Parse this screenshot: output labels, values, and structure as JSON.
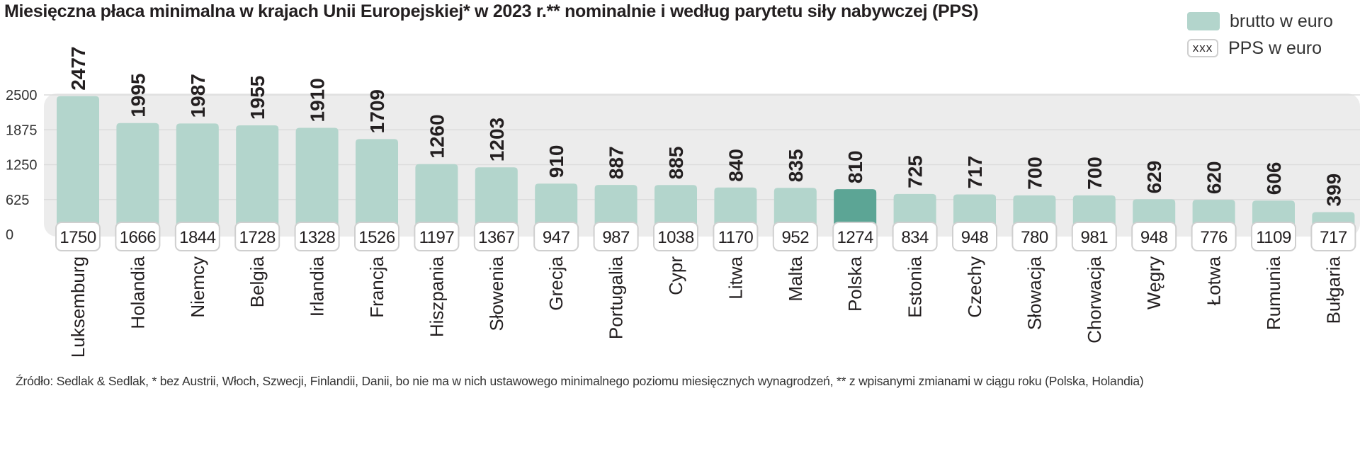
{
  "title": "Miesięczna płaca minimalna w krajach Unii Europejskiej* w 2023 r.** nominalnie i według parytetu siły nabywczej (PPS)",
  "legend": {
    "gross": "brutto w euro",
    "pps_marker": "xxx",
    "pps": "PPS w euro"
  },
  "source": "Źródło: Sedlak & Sedlak, * bez Austrii, Włoch, Szwecji, Finlandii, Danii, bo nie ma w nich ustawowego minimalnego poziomu miesięcznych wynagrodzeń, ** z wpisanymi zmianami w ciągu roku (Polska, Holandia)",
  "colors": {
    "bar": "#b3d5cc",
    "highlight_bar": "#5ca595",
    "plot_bg": "#ececec",
    "text": "#231f20",
    "box_border": "#cfcfcf"
  },
  "chart_data": {
    "type": "bar",
    "title": "Miesięczna płaca minimalna w krajach Unii Europejskiej* w 2023 r.** nominalnie i według parytetu siły nabywczej (PPS)",
    "xlabel": "",
    "ylabel": "",
    "ylim": [
      0,
      2500
    ],
    "yticks": [
      0,
      625,
      1250,
      1875,
      2500
    ],
    "grid": true,
    "legend_position": "top-right",
    "highlight": "Polska",
    "categories": [
      "Luksemburg",
      "Holandia",
      "Niemcy",
      "Belgia",
      "Irlandia",
      "Francja",
      "Hiszpania",
      "Słowenia",
      "Grecja",
      "Portugalia",
      "Cypr",
      "Litwa",
      "Malta",
      "Polska",
      "Estonia",
      "Czechy",
      "Słowacja",
      "Chorwacja",
      "Węgry",
      "Łotwa",
      "Rumunia",
      "Bułgaria"
    ],
    "series": [
      {
        "name": "brutto w euro",
        "values": [
          2477,
          1995,
          1987,
          1955,
          1910,
          1709,
          1260,
          1203,
          910,
          887,
          885,
          840,
          835,
          810,
          725,
          717,
          700,
          700,
          629,
          620,
          606,
          399
        ]
      },
      {
        "name": "PPS w euro",
        "values": [
          1750,
          1666,
          1844,
          1728,
          1328,
          1526,
          1197,
          1367,
          947,
          987,
          1038,
          1170,
          952,
          1274,
          834,
          948,
          780,
          981,
          948,
          776,
          1109,
          717
        ]
      }
    ]
  }
}
